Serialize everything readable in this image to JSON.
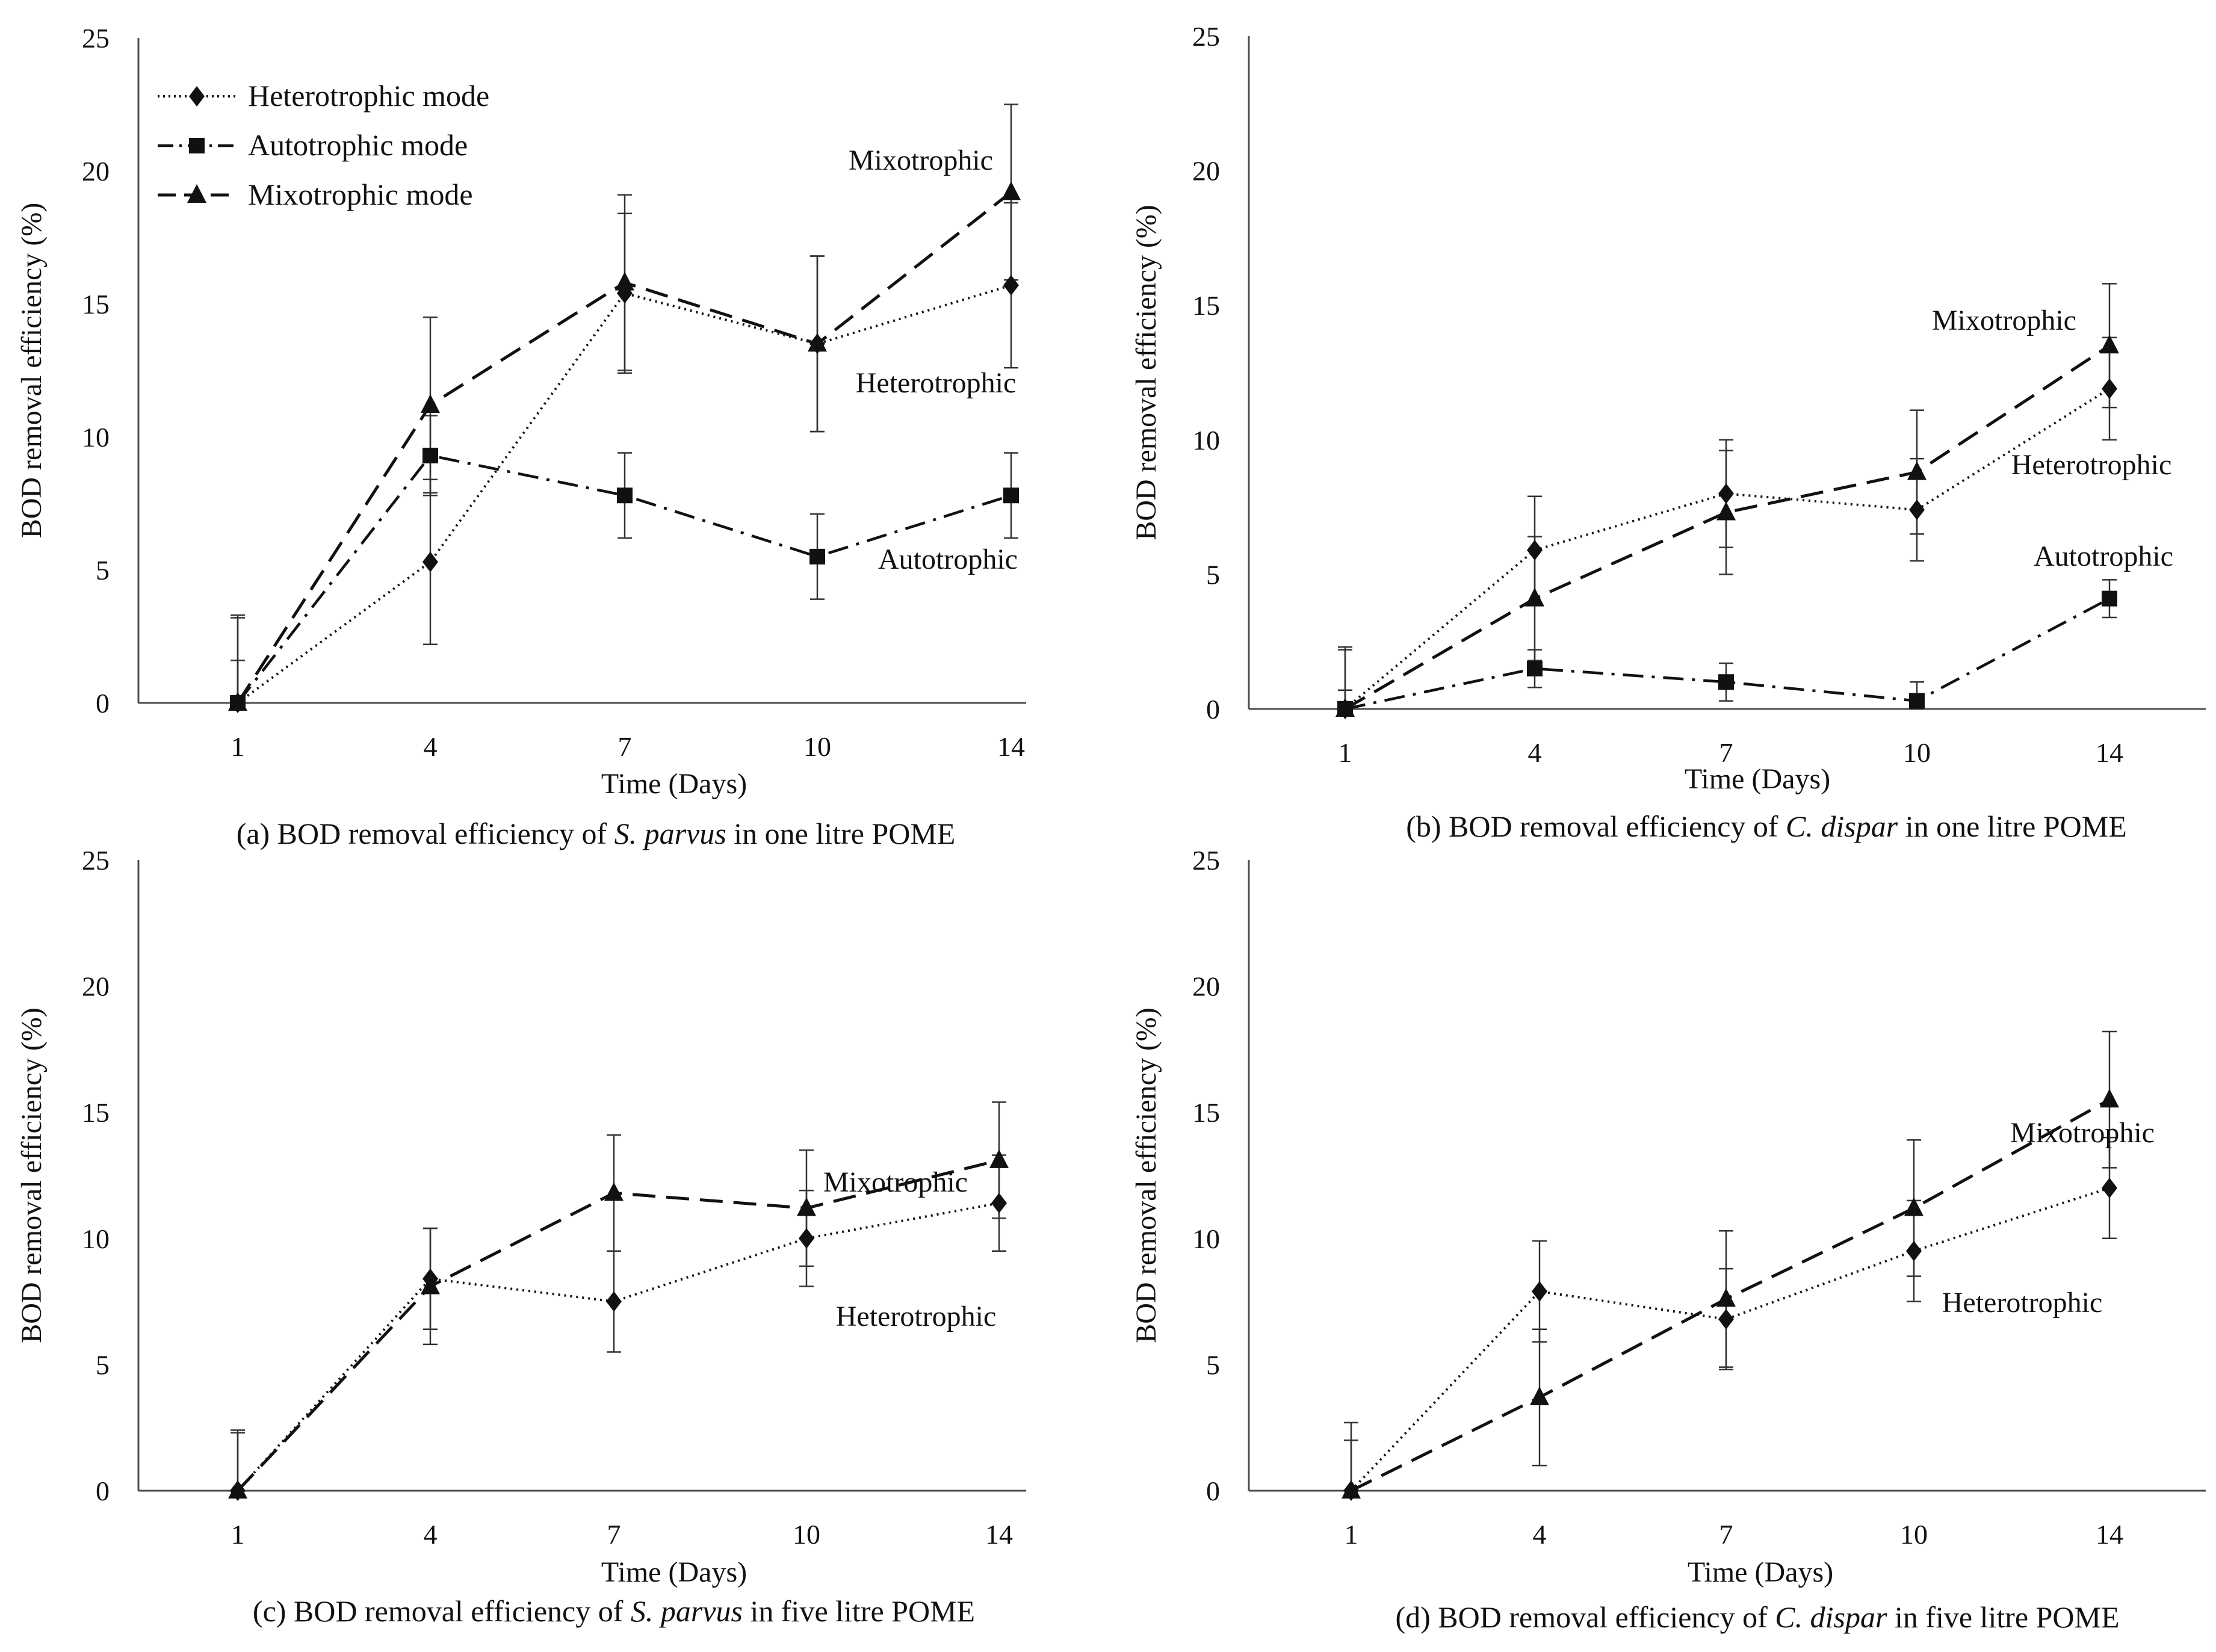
{
  "chart_data": [
    {
      "panel": "a",
      "type": "line",
      "caption": {
        "prefix": "(a) BOD removal  efficiency  of ",
        "species": "S. parvus",
        "suffix": " in  one litre  POME"
      },
      "xlabel": "Time  (Days)",
      "ylabel": "BOD removal  efficiency  (%)",
      "categories": [
        "1",
        "4",
        "7",
        "10",
        "14"
      ],
      "ylim": [
        0,
        25
      ],
      "yticks": [
        0,
        5,
        10,
        15,
        20,
        25
      ],
      "series": [
        {
          "key": "heterotrophic",
          "name": "Heterotrophic mode",
          "label": "Heterotrophic",
          "values": [
            0,
            5.3,
            15.4,
            13.5,
            15.7
          ],
          "errors": [
            1.6,
            3.1,
            3.0,
            3.3,
            3.1
          ]
        },
        {
          "key": "autotrophic",
          "name": "Autotrophic mode",
          "label": "Autotrophic",
          "values": [
            0,
            9.3,
            7.8,
            5.5,
            7.8
          ],
          "errors": [
            3.2,
            1.5,
            1.6,
            1.6,
            1.6
          ]
        },
        {
          "key": "mixotrophic",
          "name": "Mixotrophic mode",
          "label": "Mixotrophic",
          "values": [
            0,
            11.2,
            15.8,
            13.5,
            19.2
          ],
          "errors": [
            3.3,
            3.3,
            3.3,
            3.3,
            3.3
          ]
        }
      ]
    },
    {
      "panel": "b",
      "type": "line",
      "caption": {
        "prefix": "(b) BOD removal  efficiency  of ",
        "species": "C. dispar",
        "suffix": " in  one litre  POME"
      },
      "xlabel": "Time  (Days)",
      "ylabel": "BOD removal  efficiency  (%)",
      "categories": [
        "1",
        "4",
        "7",
        "10",
        "14"
      ],
      "ylim": [
        0,
        25
      ],
      "yticks": [
        0,
        5,
        10,
        15,
        20,
        25
      ],
      "series": [
        {
          "key": "heterotrophic",
          "name": "Heterotrophic mode",
          "label": "Heterotrophic",
          "values": [
            0,
            5.9,
            8.0,
            7.4,
            11.9
          ],
          "errors": [
            2.3,
            2.0,
            2.0,
            1.9,
            1.9
          ]
        },
        {
          "key": "autotrophic",
          "name": "Autotrophic mode",
          "label": "Autotrophic",
          "values": [
            0,
            1.5,
            1.0,
            0.3,
            4.1
          ],
          "errors": [
            0.7,
            0.7,
            0.7,
            0.7,
            0.7
          ]
        },
        {
          "key": "mixotrophic",
          "name": "Mixotrophic mode",
          "label": "Mixotrophic",
          "values": [
            0,
            4.1,
            7.3,
            8.8,
            13.5
          ],
          "errors": [
            2.2,
            2.3,
            2.3,
            2.3,
            2.3
          ]
        }
      ]
    },
    {
      "panel": "c",
      "type": "line",
      "caption": {
        "prefix": "(c) BOD removal  efficiency  of ",
        "species": "S. parvus",
        "suffix": " in  five litre  POME"
      },
      "xlabel": "Time  (Days)",
      "ylabel": "BOD removal  efficiency  (%)",
      "categories": [
        "1",
        "4",
        "7",
        "10",
        "14"
      ],
      "ylim": [
        0,
        25
      ],
      "yticks": [
        0,
        5,
        10,
        15,
        20,
        25
      ],
      "series": [
        {
          "key": "heterotrophic",
          "name": "Heterotrophic mode",
          "label": "Heterotrophic",
          "values": [
            0,
            8.4,
            7.5,
            10.0,
            11.4
          ],
          "errors": [
            2.4,
            2.0,
            2.0,
            1.9,
            1.9
          ]
        },
        {
          "key": "mixotrophic",
          "name": "Mixotrophic mode",
          "label": "Mixotrophic",
          "values": [
            0,
            8.1,
            11.8,
            11.2,
            13.1
          ],
          "errors": [
            2.3,
            2.3,
            2.3,
            2.3,
            2.3
          ]
        }
      ]
    },
    {
      "panel": "d",
      "type": "line",
      "caption": {
        "prefix": "(d) BOD removal  efficiency  of ",
        "species": "C. dispar",
        "suffix": " in  five litre  POME"
      },
      "xlabel": "Time  (Days)",
      "ylabel": "BOD removal  efficiency  (%)",
      "categories": [
        "1",
        "4",
        "7",
        "10",
        "14"
      ],
      "ylim": [
        0,
        25
      ],
      "yticks": [
        0,
        5,
        10,
        15,
        20,
        25
      ],
      "series": [
        {
          "key": "heterotrophic",
          "name": "Heterotrophic mode",
          "label": "Heterotrophic",
          "values": [
            0,
            7.9,
            6.8,
            9.5,
            12.0
          ],
          "errors": [
            2.0,
            2.0,
            2.0,
            2.0,
            2.0
          ]
        },
        {
          "key": "mixotrophic",
          "name": "Mixotrophic mode",
          "label": "Mixotrophic",
          "values": [
            0,
            3.7,
            7.6,
            11.2,
            15.5
          ],
          "errors": [
            2.7,
            2.7,
            2.7,
            2.7,
            2.7
          ]
        }
      ]
    }
  ],
  "legend": {
    "entries": [
      {
        "key": "heterotrophic",
        "label": "Heterotrophic mode"
      },
      {
        "key": "autotrophic",
        "label": "Autotrophic mode"
      },
      {
        "key": "mixotrophic",
        "label": "Mixotrophic mode"
      }
    ]
  },
  "colors": {
    "ink": "#111111",
    "axis": "#4d4d4d",
    "axis_title": "#3a3a3a",
    "background": "#ffffff"
  }
}
